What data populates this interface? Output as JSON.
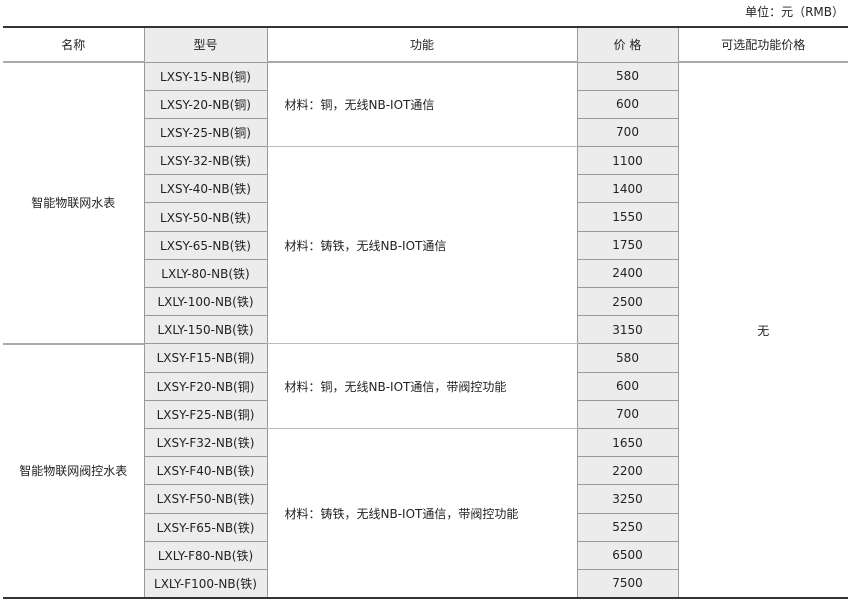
{
  "unit_label": "单位：元（RMB）",
  "headers": {
    "name": "名称",
    "model": "型号",
    "function": "功能",
    "price": "价 格",
    "optional": "可选配功能价格"
  },
  "optional_value": "无",
  "groups": [
    {
      "name": "智能物联网水表",
      "subgroups": [
        {
          "function": "材料：铜，无线NB-IOT通信",
          "rows": [
            {
              "model": "LXSY-15-NB(铜)",
              "price": "580"
            },
            {
              "model": "LXSY-20-NB(铜)",
              "price": "600"
            },
            {
              "model": "LXSY-25-NB(铜)",
              "price": "700"
            }
          ]
        },
        {
          "function": "材料：铸铁，无线NB-IOT通信",
          "rows": [
            {
              "model": "LXSY-32-NB(铁)",
              "price": "1100"
            },
            {
              "model": "LXSY-40-NB(铁)",
              "price": "1400"
            },
            {
              "model": "LXSY-50-NB(铁)",
              "price": "1550"
            },
            {
              "model": "LXSY-65-NB(铁)",
              "price": "1750"
            },
            {
              "model": "LXLY-80-NB(铁)",
              "price": "2400"
            },
            {
              "model": "LXLY-100-NB(铁)",
              "price": "2500"
            },
            {
              "model": "LXLY-150-NB(铁)",
              "price": "3150"
            }
          ]
        }
      ]
    },
    {
      "name": "智能物联网阀控水表",
      "subgroups": [
        {
          "function": "材料：铜，无线NB-IOT通信，带阀控功能",
          "rows": [
            {
              "model": "LXSY-F15-NB(铜)",
              "price": "580"
            },
            {
              "model": "LXSY-F20-NB(铜)",
              "price": "600"
            },
            {
              "model": "LXSY-F25-NB(铜)",
              "price": "700"
            }
          ]
        },
        {
          "function": "材料：铸铁，无线NB-IOT通信，带阀控功能",
          "rows": [
            {
              "model": "LXSY-F32-NB(铁)",
              "price": "1650"
            },
            {
              "model": "LXSY-F40-NB(铁)",
              "price": "2200"
            },
            {
              "model": "LXSY-F50-NB(铁)",
              "price": "3250"
            },
            {
              "model": "LXSY-F65-NB(铁)",
              "price": "5250"
            },
            {
              "model": "LXLY-F80-NB(铁)",
              "price": "6500"
            },
            {
              "model": "LXLY-F100-NB(铁)",
              "price": "7500"
            }
          ]
        }
      ]
    }
  ]
}
